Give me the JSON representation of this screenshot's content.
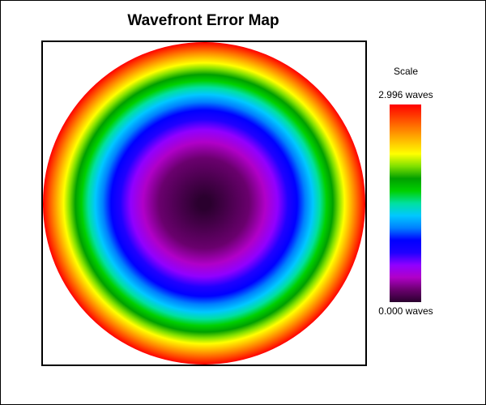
{
  "chart_data": {
    "type": "heatmap",
    "title": "Wavefront Error Map",
    "pupil_shape": "circular",
    "profile": "radially-symmetric bowl: minimum at center, maximum at edge",
    "value_min": 0.0,
    "value_max": 2.996,
    "units": "waves",
    "colorbar": {
      "title": "Scale",
      "max_label": "2.996 waves",
      "min_label": "0.000 waves",
      "placement": "right",
      "colors_low_to_high": [
        "#2a002e",
        "#6a006e",
        "#b000c8",
        "#9000ff",
        "#2000ff",
        "#0000ff",
        "#0080ff",
        "#00c8ff",
        "#00e0a0",
        "#00d000",
        "#00a000",
        "#80e000",
        "#ffff00",
        "#ffc000",
        "#ff8000",
        "#ff4000",
        "#ff0000"
      ]
    }
  }
}
